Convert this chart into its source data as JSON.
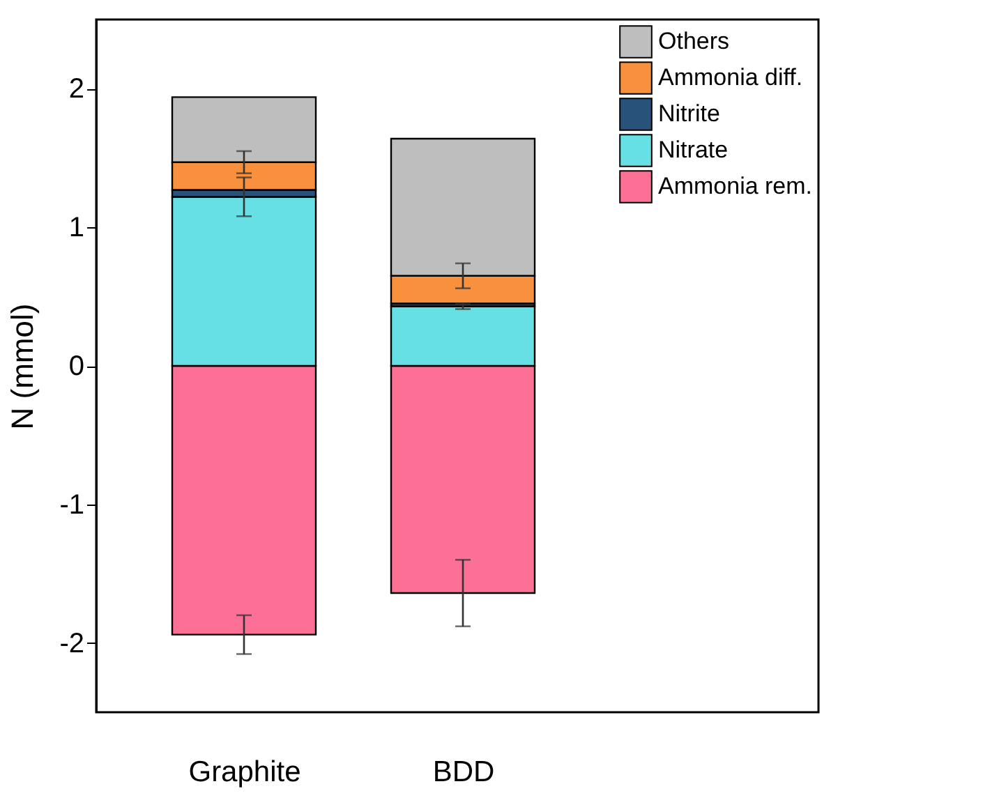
{
  "chart_data": {
    "type": "bar",
    "stacked": true,
    "ylabel": "N (mmol)",
    "categories": [
      "Graphite",
      "BDD"
    ],
    "ylim": [
      -2.5,
      2.5
    ],
    "yticks": [
      -2,
      -1,
      0,
      1,
      2
    ],
    "legend": "top right",
    "series": [
      {
        "name": "Ammonia rem.",
        "color": "#fd7096",
        "values": [
          -1.94,
          -1.64
        ],
        "errors": [
          0.14,
          0.24
        ]
      },
      {
        "name": "Nitrate",
        "color": "#66e0e4",
        "values": [
          1.22,
          0.43
        ],
        "errors": [
          0.14,
          0.02
        ]
      },
      {
        "name": "Nitrite",
        "color": "#28527a",
        "values": [
          0.05,
          0.02
        ],
        "errors": [
          null,
          null
        ]
      },
      {
        "name": "Ammonia diff.",
        "color": "#f7913d",
        "values": [
          0.2,
          0.2
        ],
        "errors": [
          0.08,
          0.09
        ]
      },
      {
        "name": "Others",
        "color": "#bebebe",
        "values": [
          0.47,
          0.99
        ],
        "errors": [
          null,
          null
        ]
      }
    ]
  }
}
